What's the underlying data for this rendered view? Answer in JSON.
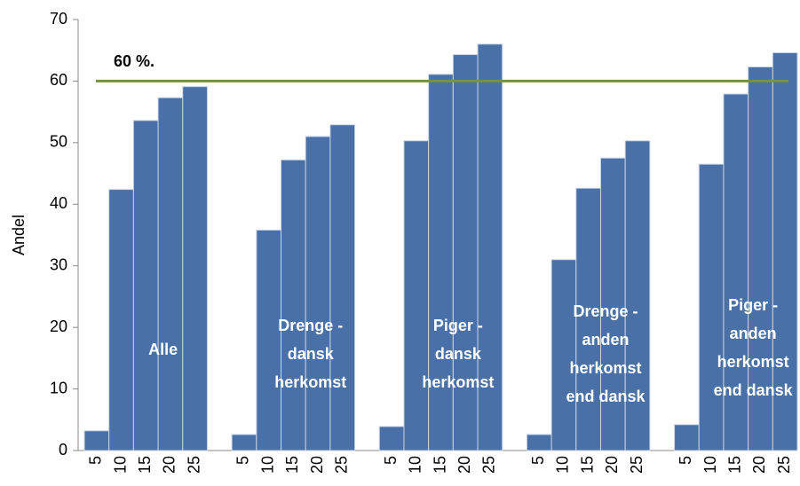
{
  "chart_data": {
    "type": "bar",
    "y_label": "Andel",
    "categories": [
      "5",
      "10",
      "15",
      "20",
      "25",
      null,
      "5",
      "10",
      "15",
      "20",
      "25",
      null,
      "5",
      "10",
      "15",
      "20",
      "25",
      null,
      "5",
      "10",
      "15",
      "20",
      "25",
      null,
      "5",
      "10",
      "15",
      "20",
      "25"
    ],
    "values": [
      3.2,
      42.4,
      53.6,
      57.3,
      59.1,
      null,
      2.6,
      35.8,
      47.2,
      51.0,
      52.9,
      null,
      3.9,
      50.3,
      61.1,
      64.3,
      66.0,
      null,
      2.6,
      31.0,
      42.6,
      47.5,
      50.3,
      null,
      4.2,
      46.5,
      57.9,
      62.3,
      64.6
    ],
    "color": "#4a70a8",
    "ylim": [
      0,
      70
    ],
    "yticks": [
      0,
      10,
      20,
      30,
      40,
      50,
      60,
      70
    ],
    "grid": false,
    "reference_line": {
      "value": 60,
      "label": "60 %.",
      "color": "#77933c"
    },
    "group_labels": [
      [
        "Alle"
      ],
      [
        "Drenge -",
        "dansk",
        "herkomst"
      ],
      [
        "Piger -",
        "dansk",
        "herkomst"
      ],
      [
        "Drenge -",
        "anden",
        "herkomst",
        "end dansk"
      ],
      [
        "Piger -",
        "anden",
        "herkomst",
        "end dansk"
      ]
    ]
  }
}
